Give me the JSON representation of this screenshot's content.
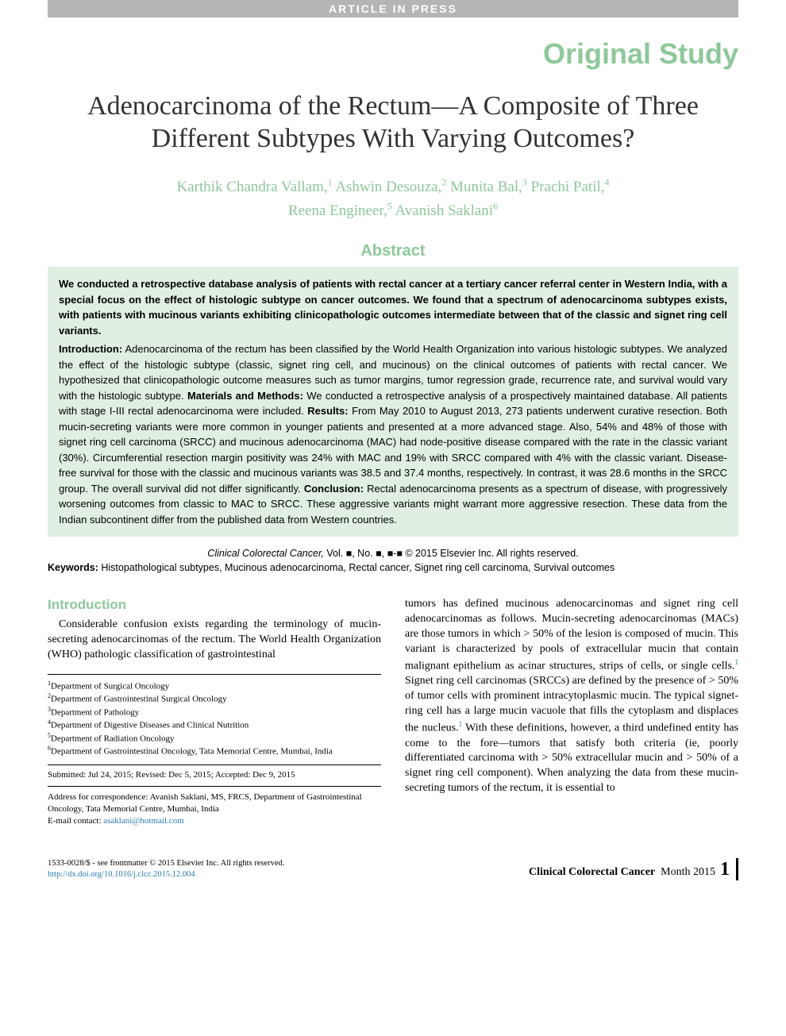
{
  "header": {
    "press_bar": "ARTICLE IN PRESS",
    "category": "Original Study"
  },
  "title": "Adenocarcinoma of the Rectum—A Composite of Three Different Subtypes With Varying Outcomes?",
  "authors": [
    {
      "name": "Karthik Chandra Vallam",
      "aff": "1"
    },
    {
      "name": "Ashwin Desouza",
      "aff": "2"
    },
    {
      "name": "Munita Bal",
      "aff": "3"
    },
    {
      "name": "Prachi Patil",
      "aff": "4"
    },
    {
      "name": "Reena Engineer",
      "aff": "5"
    },
    {
      "name": "Avanish Saklani",
      "aff": "6"
    }
  ],
  "abstract": {
    "heading": "Abstract",
    "lead": "We conducted a retrospective database analysis of patients with rectal cancer at a tertiary cancer referral center in Western India, with a special focus on the effect of histologic subtype on cancer outcomes. We found that a spectrum of adenocarcinoma subtypes exists, with patients with mucinous variants exhibiting clinicopathologic outcomes intermediate between that of the classic and signet ring cell variants.",
    "sections": {
      "intro_label": "Introduction:",
      "intro": " Adenocarcinoma of the rectum has been classified by the World Health Organization into various histologic subtypes. We analyzed the effect of the histologic subtype (classic, signet ring cell, and mucinous) on the clinical outcomes of patients with rectal cancer. We hypothesized that clinicopathologic outcome measures such as tumor margins, tumor regression grade, recurrence rate, and survival would vary with the histologic subtype. ",
      "methods_label": "Materials and Methods:",
      "methods": " We conducted a retrospective analysis of a prospectively maintained database. All patients with stage I-III rectal adenocarcinoma were included. ",
      "results_label": "Results:",
      "results": " From May 2010 to August 2013, 273 patients underwent curative resection. Both mucin-secreting variants were more common in younger patients and presented at a more advanced stage. Also, 54% and 48% of those with signet ring cell carcinoma (SRCC) and mucinous adenocarcinoma (MAC) had node-positive disease compared with the rate in the classic variant (30%). Circumferential resection margin positivity was 24% with MAC and 19% with SRCC compared with 4% with the classic variant. Disease-free survival for those with the classic and mucinous variants was 38.5 and 37.4 months, respectively. In contrast, it was 28.6 months in the SRCC group. The overall survival did not differ significantly. ",
      "conclusion_label": "Conclusion:",
      "conclusion": " Rectal adenocarcinoma presents as a spectrum of disease, with progressively worsening outcomes from classic to MAC to SRCC. These aggressive variants might warrant more aggressive resection. These data from the Indian subcontinent differ from the published data from Western countries."
    }
  },
  "journal": {
    "name": "Clinical Colorectal Cancer,",
    "vol": " Vol. ■, No. ■, ■-■ ",
    "copyright": "© 2015 Elsevier Inc. All rights reserved."
  },
  "keywords": {
    "label": "Keywords:",
    "text": " Histopathological subtypes, Mucinous adenocarcinoma, Rectal cancer, Signet ring cell carcinoma, Survival outcomes"
  },
  "introduction": {
    "heading": "Introduction",
    "col1": "Considerable confusion exists regarding the terminology of mucin-secreting adenocarcinomas of the rectum. The World Health Organization (WHO) pathologic classification of gastrointestinal",
    "col2_a": "tumors has defined mucinous adenocarcinomas and signet ring cell adenocarcinomas as follows. Mucin-secreting adenocarcinomas (MACs) are those tumors in which > 50% of the lesion is composed of mucin. This variant is characterized by pools of extracellular mucin that contain malignant epithelium as acinar structures, strips of cells, or single cells.",
    "col2_b": " Signet ring cell carcinomas (SRCCs) are defined by the presence of > 50% of tumor cells with prominent intracytoplasmic mucin. The typical signet-ring cell has a large mucin vacuole that fills the cytoplasm and displaces the nucleus.",
    "col2_c": " With these definitions, however, a third undefined entity has come to the fore—tumors that satisfy both criteria (ie, poorly differentiated carcinoma with > 50% extracellular mucin and > 50% of a signet ring cell component). When analyzing the data from these mucin-secreting tumors of the rectum, it is essential to"
  },
  "affiliations": [
    "Department of Surgical Oncology",
    "Department of Gastrointestinal Surgical Oncology",
    "Department of Pathology",
    "Department of Digestive Diseases and Clinical Nutrition",
    "Department of Radiation Oncology",
    "Department of Gastrointestinal Oncology, Tata Memorial Centre, Mumbai, India"
  ],
  "dates": "Submitted: Jul 24, 2015; Revised: Dec 5, 2015; Accepted: Dec 9, 2015",
  "correspondence": {
    "text": "Address for correspondence: Avanish Saklani, MS, FRCS, Department of Gastrointestinal Oncology, Tata Memorial Centre, Mumbai, India",
    "email_label": "E-mail contact: ",
    "email": "asaklani@hotmail.com"
  },
  "footer": {
    "issn": "1533-0028/$ - see frontmatter © 2015 Elsevier Inc. All rights reserved.",
    "doi": "http://dx.doi.org/10.1016/j.clcc.2015.12.004",
    "journal": "Clinical Colorectal Cancer",
    "month": "Month 2015",
    "page": "1"
  },
  "colors": {
    "accent_green": "#8ec89a",
    "abstract_bg": "#e0efe2",
    "gray_bar": "#b5b5b5",
    "link_blue": "#2a7ab0"
  }
}
